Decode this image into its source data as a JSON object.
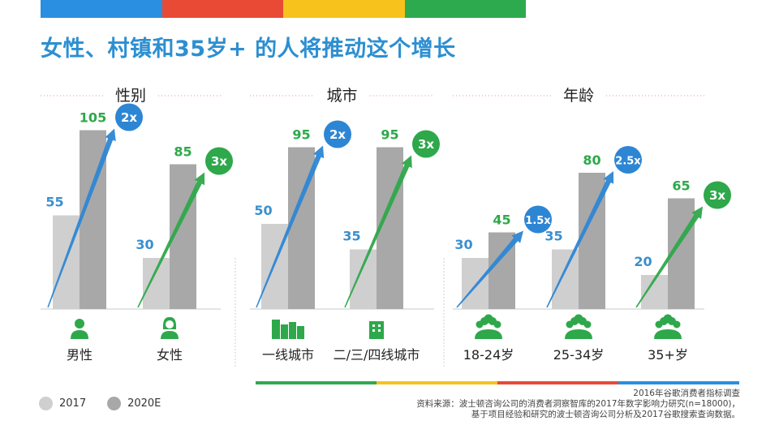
{
  "header": {
    "title": "女性、村镇和35岁+ 的人将推动这个增长",
    "bar_colors": [
      "#2a8fe0",
      "#e84a36",
      "#f7c21c",
      "#2eaa4e"
    ]
  },
  "colors": {
    "bar_2017": "#cfcfcf",
    "bar_2020": "#a8a8a8",
    "value_2017": "#3a8fce",
    "value_2020": "#2ea84a",
    "arrow_blue": "#2d86d4",
    "arrow_green": "#2ea84a",
    "circle_blue": "#2d86d4",
    "circle_green": "#2ea84a",
    "icon": "#2ea84a"
  },
  "legend": {
    "items": [
      {
        "label": "2017",
        "color": "#cfcfcf"
      },
      {
        "label": "2020E",
        "color": "#a8a8a8"
      }
    ]
  },
  "source": {
    "line1": "2016年谷歌消费者指标调查",
    "line2": "资料来源：波士顿咨询公司的消费者洞察智库的2017年数字影响力研究(n=18000)，",
    "line3": "基于项目经验和研究的波士顿咨询公司分析及2017谷歌搜索查询数据。"
  },
  "chart_data": [
    {
      "type": "bar",
      "title": "性别",
      "categories": [
        "男性",
        "女性"
      ],
      "icons": [
        "male-person-icon",
        "female-person-icon"
      ],
      "series": [
        {
          "name": "2017",
          "values": [
            55,
            30
          ]
        },
        {
          "name": "2020E",
          "values": [
            105,
            85
          ]
        }
      ],
      "growth": [
        "2x",
        "3x"
      ],
      "growth_color": [
        "blue",
        "green"
      ],
      "ylim": [
        0,
        110
      ]
    },
    {
      "type": "bar",
      "title": "城市",
      "categories": [
        "一线城市",
        "二/三/四线城市"
      ],
      "icons": [
        "city-buildings-icon",
        "town-building-icon"
      ],
      "series": [
        {
          "name": "2017",
          "values": [
            50,
            35
          ]
        },
        {
          "name": "2020E",
          "values": [
            95,
            95
          ]
        }
      ],
      "growth": [
        "2x",
        "3x"
      ],
      "growth_color": [
        "blue",
        "green"
      ],
      "ylim": [
        0,
        110
      ]
    },
    {
      "type": "bar",
      "title": "年龄",
      "categories": [
        "18-24岁",
        "25-34岁",
        "35+岁"
      ],
      "icons": [
        "group-people-icon",
        "group-people-icon",
        "group-people-icon"
      ],
      "series": [
        {
          "name": "2017",
          "values": [
            30,
            35,
            20
          ]
        },
        {
          "name": "2020E",
          "values": [
            45,
            80,
            65
          ]
        }
      ],
      "growth": [
        "1.5x",
        "2.5x",
        "3x"
      ],
      "growth_color": [
        "blue",
        "blue",
        "green"
      ],
      "ylim": [
        0,
        110
      ]
    }
  ]
}
